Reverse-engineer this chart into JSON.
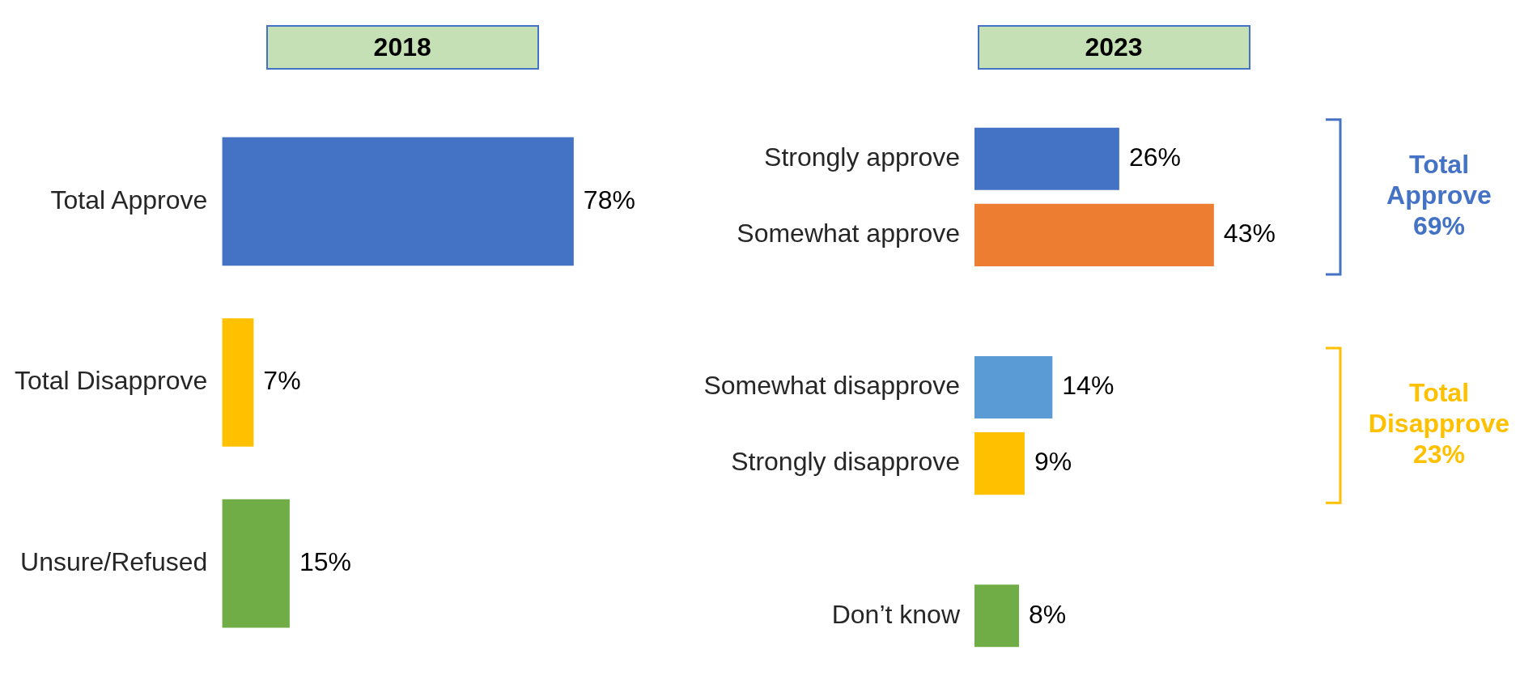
{
  "chart_data": [
    {
      "type": "bar",
      "orientation": "horizontal",
      "title": "2018",
      "categories": [
        "Total Approve",
        "Total Disapprove",
        "Unsure/Refused"
      ],
      "values": [
        78,
        7,
        15
      ],
      "colors": [
        "#4472c4",
        "#ffc000",
        "#70ad47"
      ],
      "value_labels": [
        "78%",
        "7%",
        "15%"
      ],
      "legend": false,
      "tick_labels": "y"
    },
    {
      "type": "bar",
      "orientation": "horizontal",
      "title": "2023",
      "categories": [
        "Strongly approve",
        "Somewhat approve",
        null,
        "Somewhat disapprove",
        "Strongly disapprove",
        null,
        "Don’t know"
      ],
      "values": [
        26,
        43,
        null,
        14,
        9,
        null,
        8
      ],
      "colors": [
        "#4472c4",
        "#ed7d31",
        null,
        "#5b9bd5",
        "#ffc000",
        null,
        "#70ad47"
      ],
      "value_labels": [
        "26%",
        "43%",
        null,
        "14%",
        "9%",
        null,
        "8%"
      ],
      "annotations": [
        "Total\nApprove\n69%",
        "Total\nDisapprove\n23%"
      ],
      "legend": false,
      "tick_labels": "y"
    }
  ]
}
